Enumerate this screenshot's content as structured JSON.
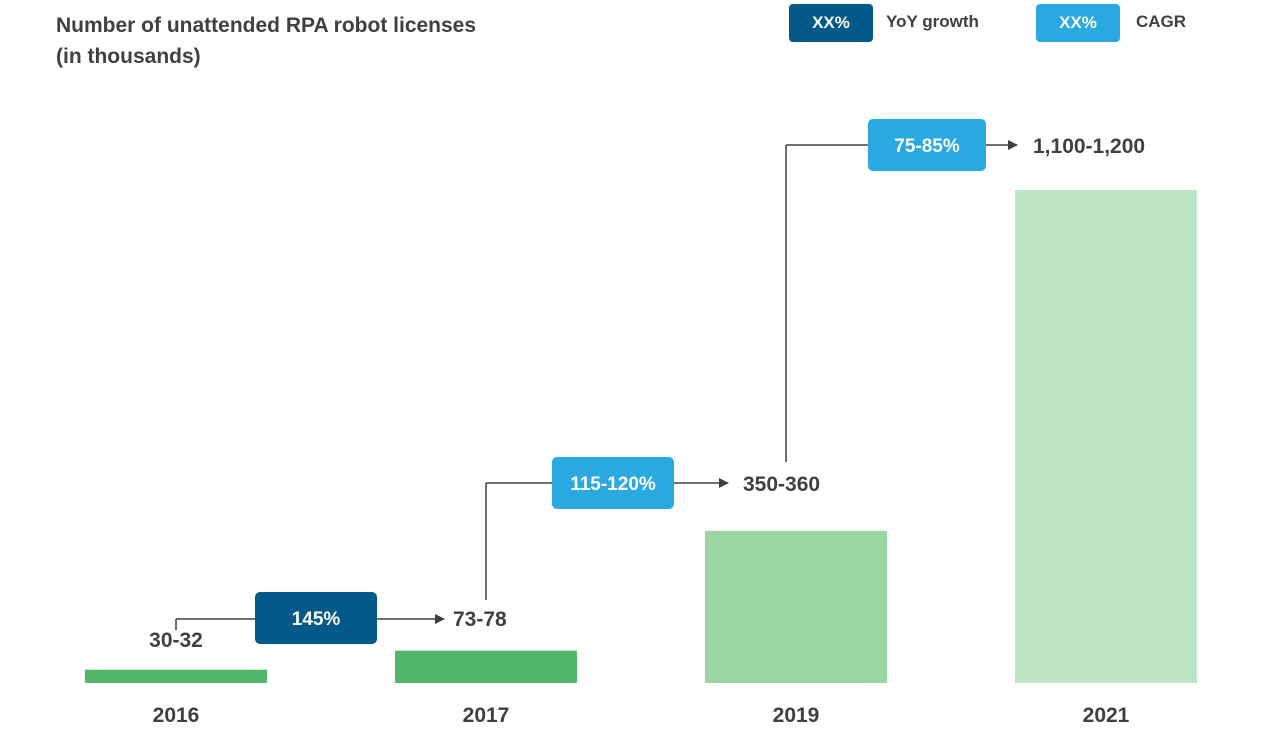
{
  "title": {
    "line1": "Number of unattended RPA robot licenses",
    "line2": "(in thousands)"
  },
  "legend": {
    "yoy": {
      "badge": "XX%",
      "label": "YoY growth",
      "color": "#035a8a"
    },
    "cagr": {
      "badge": "XX%",
      "label": "CAGR",
      "color": "#29a9e0"
    }
  },
  "chart_data": {
    "type": "bar",
    "categories": [
      "2016",
      "2017",
      "2019",
      "2021"
    ],
    "values": [
      31,
      75.5,
      355,
      1150
    ],
    "value_labels": [
      "30-32",
      "73-78",
      "350-360",
      "1,100-1,200"
    ],
    "bar_colors": [
      "#52b76a",
      "#52b76a",
      "#9bd5a2",
      "#bde5c4"
    ],
    "ylim": [
      0,
      1150
    ],
    "growth_annotations": [
      {
        "from": "2016",
        "to": "2017",
        "label": "145%",
        "kind": "YoY growth",
        "color": "#035a8a"
      },
      {
        "from": "2017",
        "to": "2019",
        "label": "115-120%",
        "kind": "CAGR",
        "color": "#29a9e0"
      },
      {
        "from": "2019",
        "to": "2021",
        "label": "75-85%",
        "kind": "CAGR",
        "color": "#29a9e0"
      }
    ]
  }
}
